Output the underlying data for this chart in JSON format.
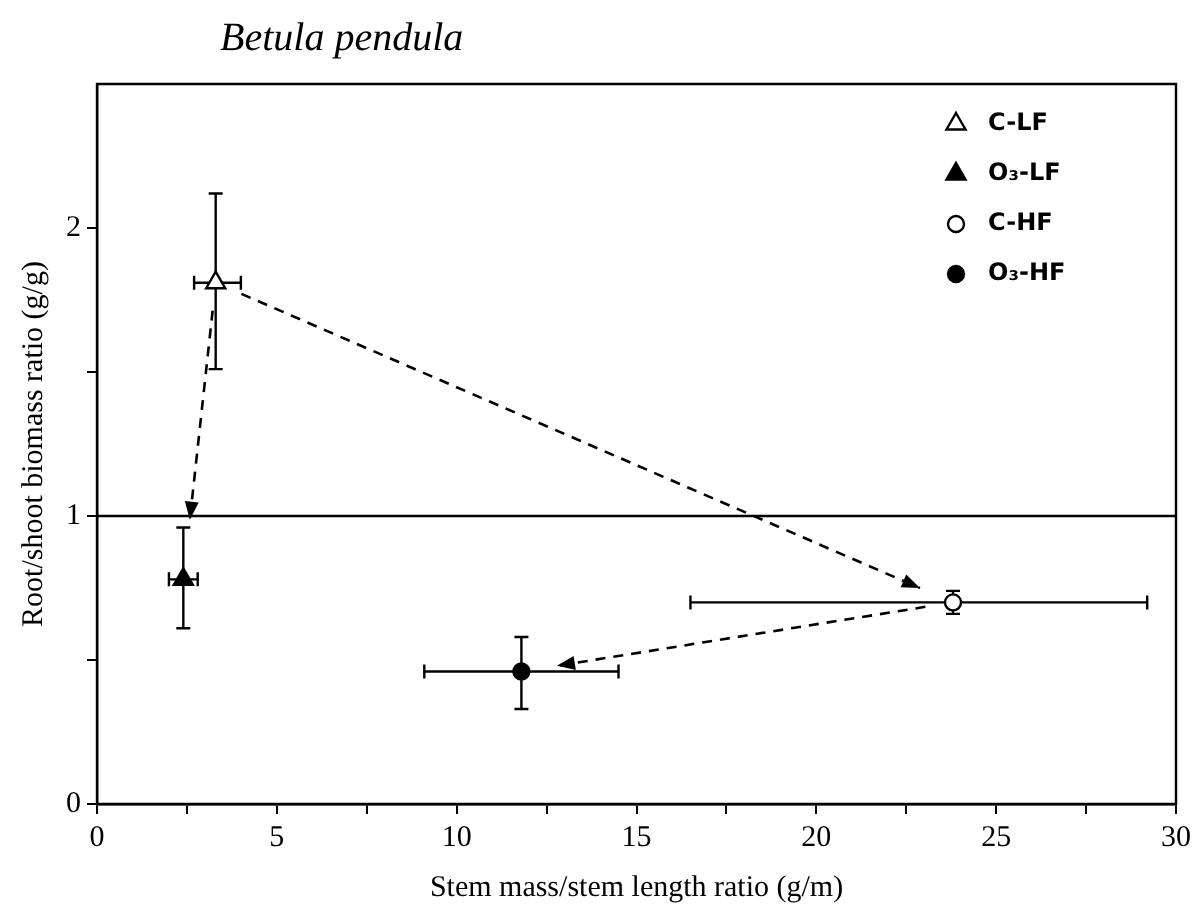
{
  "chart_data": {
    "type": "scatter",
    "title": "Betula pendula",
    "xlabel": "Stem mass/stem length ratio (g/m)",
    "ylabel": "Root/shoot biomass ratio (g/g)",
    "xlim": [
      0,
      30
    ],
    "xticks": [
      0,
      {
        "value": 2.5,
        "label": null
      },
      5,
      {
        "value": 7.5,
        "label": null
      },
      10,
      {
        "value": 12.5,
        "label": null
      },
      15,
      {
        "value": 17.5,
        "label": null
      },
      20,
      {
        "value": 22.5,
        "label": null
      },
      25,
      {
        "value": 27.5,
        "label": null
      },
      30
    ],
    "ylim": [
      0,
      2.5
    ],
    "yticks": [
      0,
      {
        "value": 0.5,
        "label": null
      },
      1,
      {
        "value": 1.5,
        "label": null
      },
      2
    ],
    "grid": false,
    "legend": "top right",
    "ref_lines": [
      {
        "axis": "y",
        "value": 1,
        "color": "#000000",
        "line_style": "solid"
      }
    ],
    "series": [
      {
        "name": "C-LF",
        "color": "#ffffff",
        "marker": "triangle",
        "x": [
          3.3
        ],
        "values": [
          1.81
        ],
        "errors": [
          [
            1.51,
            2.12
          ]
        ],
        "xerrors": [
          [
            2.7,
            4.0
          ]
        ]
      },
      {
        "name": "O₃-LF",
        "color": "#000000",
        "marker": "triangle",
        "x": [
          2.4
        ],
        "values": [
          0.78
        ],
        "errors": [
          [
            0.61,
            0.96
          ]
        ],
        "xerrors": [
          [
            2.0,
            2.8
          ]
        ]
      },
      {
        "name": "C-HF",
        "color": "#ffffff",
        "marker": "circle",
        "x": [
          23.8
        ],
        "values": [
          0.7
        ],
        "errors": [
          [
            0.66,
            0.74
          ]
        ],
        "xerrors": [
          [
            16.5,
            29.2
          ]
        ]
      },
      {
        "name": "O₃-HF",
        "color": "#000000",
        "marker": "circle",
        "x": [
          11.8
        ],
        "values": [
          0.46
        ],
        "errors": [
          [
            0.33,
            0.58
          ]
        ],
        "xerrors": [
          [
            9.1,
            14.5
          ]
        ]
      }
    ]
  }
}
